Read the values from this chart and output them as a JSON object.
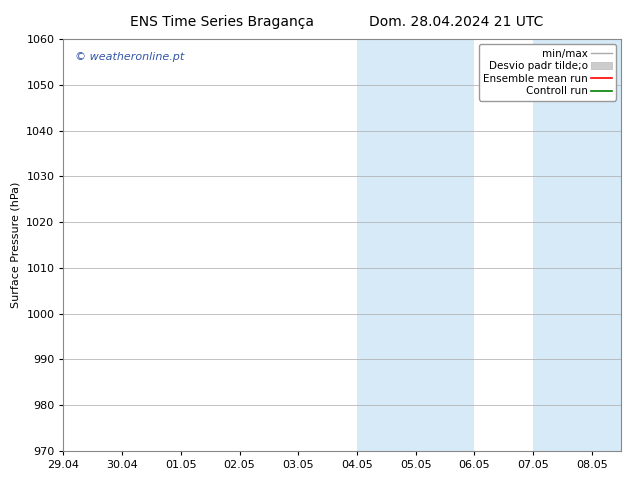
{
  "title_left": "ENS Time Series Bragança",
  "title_right": "Dom. 28.04.2024 21 UTC",
  "ylabel": "Surface Pressure (hPa)",
  "ylim": [
    970,
    1060
  ],
  "yticks": [
    970,
    980,
    990,
    1000,
    1010,
    1020,
    1030,
    1040,
    1050,
    1060
  ],
  "xtick_labels": [
    "29.04",
    "30.04",
    "01.05",
    "02.05",
    "03.05",
    "04.05",
    "05.05",
    "06.05",
    "07.05",
    "08.05"
  ],
  "watermark": "© weatheronline.pt",
  "legend_entries": [
    "min/max",
    "Desvio padr tilde;o",
    "Ensemble mean run",
    "Controll run"
  ],
  "shaded_bands": [
    {
      "xstart": 5,
      "xend": 7,
      "color": "#d6eaf8"
    },
    {
      "xstart": 8,
      "xend": 9.5,
      "color": "#d6eaf8"
    }
  ],
  "background_color": "#ffffff",
  "plot_bg_color": "#ffffff",
  "grid_color": "#aaaaaa",
  "title_fontsize": 10,
  "label_fontsize": 8,
  "tick_fontsize": 8,
  "legend_fontsize": 7.5,
  "watermark_color": "#3355aa"
}
